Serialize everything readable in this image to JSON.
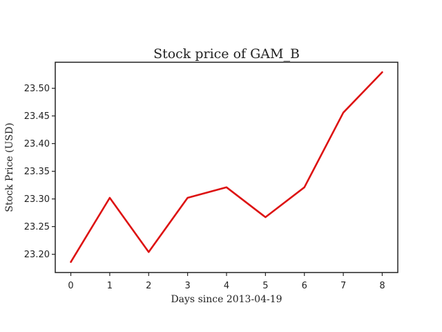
{
  "chart_data": {
    "type": "line",
    "title": "Stock price of GAM_B",
    "xlabel": "Days since 2013-04-19",
    "ylabel": "Stock Price (USD)",
    "x": [
      0,
      1,
      2,
      3,
      4,
      5,
      6,
      7,
      8
    ],
    "xticks": [
      "0",
      "1",
      "2",
      "3",
      "4",
      "5",
      "6",
      "7",
      "8"
    ],
    "yticks": [
      "23.20",
      "23.25",
      "23.30",
      "23.35",
      "23.40",
      "23.45",
      "23.50"
    ],
    "xlim": [
      -0.4,
      8.4
    ],
    "ylim": [
      23.167,
      23.547
    ],
    "grid": false,
    "series": [
      {
        "values": [
          23.186,
          23.302,
          23.204,
          23.302,
          23.321,
          23.267,
          23.321,
          23.456,
          23.529
        ],
        "color": "#dd1111"
      }
    ]
  }
}
